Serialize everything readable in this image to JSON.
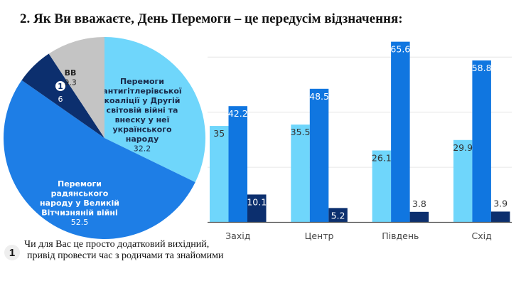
{
  "title": "2.   Як Ви вважаєте, День Перемоги – це передусім відзначення:",
  "footnote": {
    "badge": "1",
    "lines": [
      "Чи для Вас це просто додатковий вихідний,",
      "привід провести час з родичами та знайомими"
    ]
  },
  "chart_data": [
    {
      "type": "pie",
      "start": "12 o'clock",
      "direction": "clockwise",
      "slices": [
        {
          "label_lines": [
            "Перемоги",
            "антигітлерівської",
            "коаліції у Другій",
            "світовій війні та",
            "внеску у неї",
            "українського",
            "народу"
          ],
          "value": 32.2,
          "color": "#6fd6fb",
          "text_color": "#1a2a4a"
        },
        {
          "label_lines": [
            "Перемоги",
            "радянського",
            "народу у Великій",
            "Вітчизняній війні"
          ],
          "value": 52.5,
          "color": "#1e7ee6",
          "text_color": "#ffffff"
        },
        {
          "badge": "1",
          "value": 6,
          "color": "#0c2f6e",
          "text_color": "#ffffff"
        },
        {
          "label_lines": [
            "ВВ"
          ],
          "value": 9.3,
          "color": "#c4c4c4",
          "text_color": "#222222"
        }
      ]
    },
    {
      "type": "bar",
      "categories": [
        "Захід",
        "Центр",
        "Південь",
        "Схід"
      ],
      "series": [
        {
          "values": [
            35,
            35.5,
            26.1,
            29.9
          ],
          "color": "#6fd6fb"
        },
        {
          "values": [
            42.2,
            48.5,
            65.6,
            58.8
          ],
          "color": "#1076e0"
        },
        {
          "values": [
            10.1,
            5.2,
            3.8,
            3.9
          ],
          "color": "#0c2f6e"
        }
      ],
      "ylim": [
        0,
        70
      ],
      "gridlines": [
        20,
        40,
        60
      ],
      "grid": true,
      "yticks_shown": false
    }
  ]
}
